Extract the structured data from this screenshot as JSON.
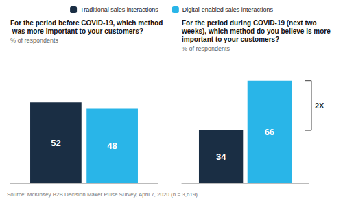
{
  "chart_data": [
    {
      "type": "bar",
      "title": "For the period before COVID-19, which method was more important to your customers?",
      "subtitle": "% of respondents",
      "categories": [
        null
      ],
      "series": [
        {
          "name": "Traditional sales interactions",
          "color": "#1a2e44",
          "values": [
            52
          ]
        },
        {
          "name": "Digital-enabled sales interactions",
          "color": "#29b5e8",
          "values": [
            48
          ]
        }
      ],
      "ylim": [
        0,
        80
      ],
      "data_labels": true,
      "tick_labels": false,
      "grid": false,
      "legend": "top",
      "source": "Source: McKinsey B2B Decision Maker Pulse Survey, April 7, 2020 (n = 3,619)"
    },
    {
      "type": "bar",
      "title": "For the period during COVID-19 (next two weeks), which method do you believe is more important to your customers?",
      "subtitle": "% of respondents",
      "categories": [
        null
      ],
      "series": [
        {
          "name": "Traditional sales interactions",
          "color": "#1a2e44",
          "values": [
            34
          ]
        },
        {
          "name": "Digital-enabled sales interactions",
          "color": "#29b5e8",
          "values": [
            66
          ]
        }
      ],
      "ylim": [
        0,
        80
      ],
      "data_labels": true,
      "tick_labels": false,
      "grid": false,
      "annotation": "2X"
    }
  ]
}
